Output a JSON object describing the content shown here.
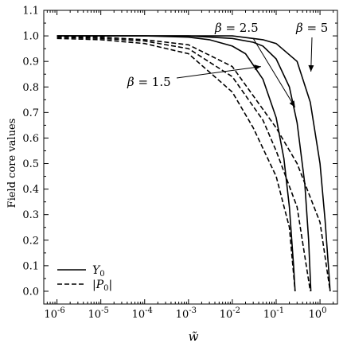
{
  "chart_data": {
    "type": "line",
    "xlabel": "w̃",
    "ylabel": "Field core values",
    "xscale": "log",
    "xlim": [
      5e-07,
      2.5
    ],
    "ylim": [
      -0.05,
      1.1
    ],
    "x_tick_values": [
      1e-06,
      1e-05,
      0.0001,
      0.001,
      0.01,
      0.1,
      1
    ],
    "x_tick_labels": [
      "10-6",
      "10-5",
      "10-4",
      "10-3",
      "10-2",
      "10-1",
      "100"
    ],
    "y_tick_labels": [
      "0.0",
      "0.1",
      "0.2",
      "0.3",
      "0.4",
      "0.5",
      "0.6",
      "0.7",
      "0.8",
      "0.9",
      "1.0",
      "1.1"
    ],
    "grid": false,
    "legend": {
      "position": "bottom-left",
      "entries": [
        {
          "label": "Y0",
          "style": "solid"
        },
        {
          "label": "|P0|",
          "style": "dashed"
        }
      ]
    },
    "series": [
      {
        "name": "Y0",
        "beta": 1.5,
        "style": "solid",
        "points": [
          [
            1e-06,
            1.0
          ],
          [
            0.0001,
            1.0
          ],
          [
            0.001,
            0.995
          ],
          [
            0.003,
            0.985
          ],
          [
            0.01,
            0.96
          ],
          [
            0.02,
            0.93
          ],
          [
            0.05,
            0.83
          ],
          [
            0.1,
            0.68
          ],
          [
            0.15,
            0.52
          ],
          [
            0.2,
            0.33
          ],
          [
            0.25,
            0.1
          ],
          [
            0.27,
            0.0
          ]
        ]
      },
      {
        "name": "Y0",
        "beta": 2.5,
        "style": "solid",
        "points": [
          [
            1e-06,
            1.0
          ],
          [
            0.001,
            1.0
          ],
          [
            0.01,
            0.99
          ],
          [
            0.03,
            0.975
          ],
          [
            0.05,
            0.96
          ],
          [
            0.1,
            0.91
          ],
          [
            0.2,
            0.8
          ],
          [
            0.3,
            0.66
          ],
          [
            0.45,
            0.42
          ],
          [
            0.55,
            0.2
          ],
          [
            0.62,
            0.0
          ]
        ]
      },
      {
        "name": "Y0",
        "beta": 5,
        "style": "solid",
        "points": [
          [
            1e-06,
            1.0
          ],
          [
            0.01,
            1.0
          ],
          [
            0.05,
            0.985
          ],
          [
            0.1,
            0.97
          ],
          [
            0.3,
            0.9
          ],
          [
            0.6,
            0.74
          ],
          [
            1.0,
            0.5
          ],
          [
            1.3,
            0.28
          ],
          [
            1.6,
            0.07
          ],
          [
            1.7,
            0.0
          ]
        ]
      },
      {
        "name": "|P0|",
        "beta": 1.5,
        "style": "dashed",
        "points": [
          [
            1e-06,
            0.99
          ],
          [
            1e-05,
            0.985
          ],
          [
            0.0001,
            0.97
          ],
          [
            0.001,
            0.93
          ],
          [
            0.01,
            0.78
          ],
          [
            0.03,
            0.64
          ],
          [
            0.1,
            0.45
          ],
          [
            0.2,
            0.25
          ],
          [
            0.27,
            0.0
          ]
        ]
      },
      {
        "name": "|P0|",
        "beta": 2.5,
        "style": "dashed",
        "points": [
          [
            1e-06,
            0.995
          ],
          [
            1e-05,
            0.99
          ],
          [
            0.0001,
            0.98
          ],
          [
            0.001,
            0.95
          ],
          [
            0.01,
            0.84
          ],
          [
            0.05,
            0.67
          ],
          [
            0.1,
            0.55
          ],
          [
            0.3,
            0.33
          ],
          [
            0.6,
            0.0
          ]
        ]
      },
      {
        "name": "|P0|",
        "beta": 5,
        "style": "dashed",
        "points": [
          [
            1e-06,
            0.998
          ],
          [
            1e-05,
            0.995
          ],
          [
            0.0001,
            0.985
          ],
          [
            0.001,
            0.965
          ],
          [
            0.01,
            0.88
          ],
          [
            0.1,
            0.64
          ],
          [
            0.3,
            0.5
          ],
          [
            1.0,
            0.27
          ],
          [
            1.7,
            0.0
          ]
        ]
      }
    ],
    "annotations": [
      {
        "text": "β = 2.5",
        "target_beta": 2.5
      },
      {
        "text": "β = 5",
        "target_beta": 5
      },
      {
        "text": "β = 1.5",
        "target_beta": 1.5
      }
    ]
  }
}
